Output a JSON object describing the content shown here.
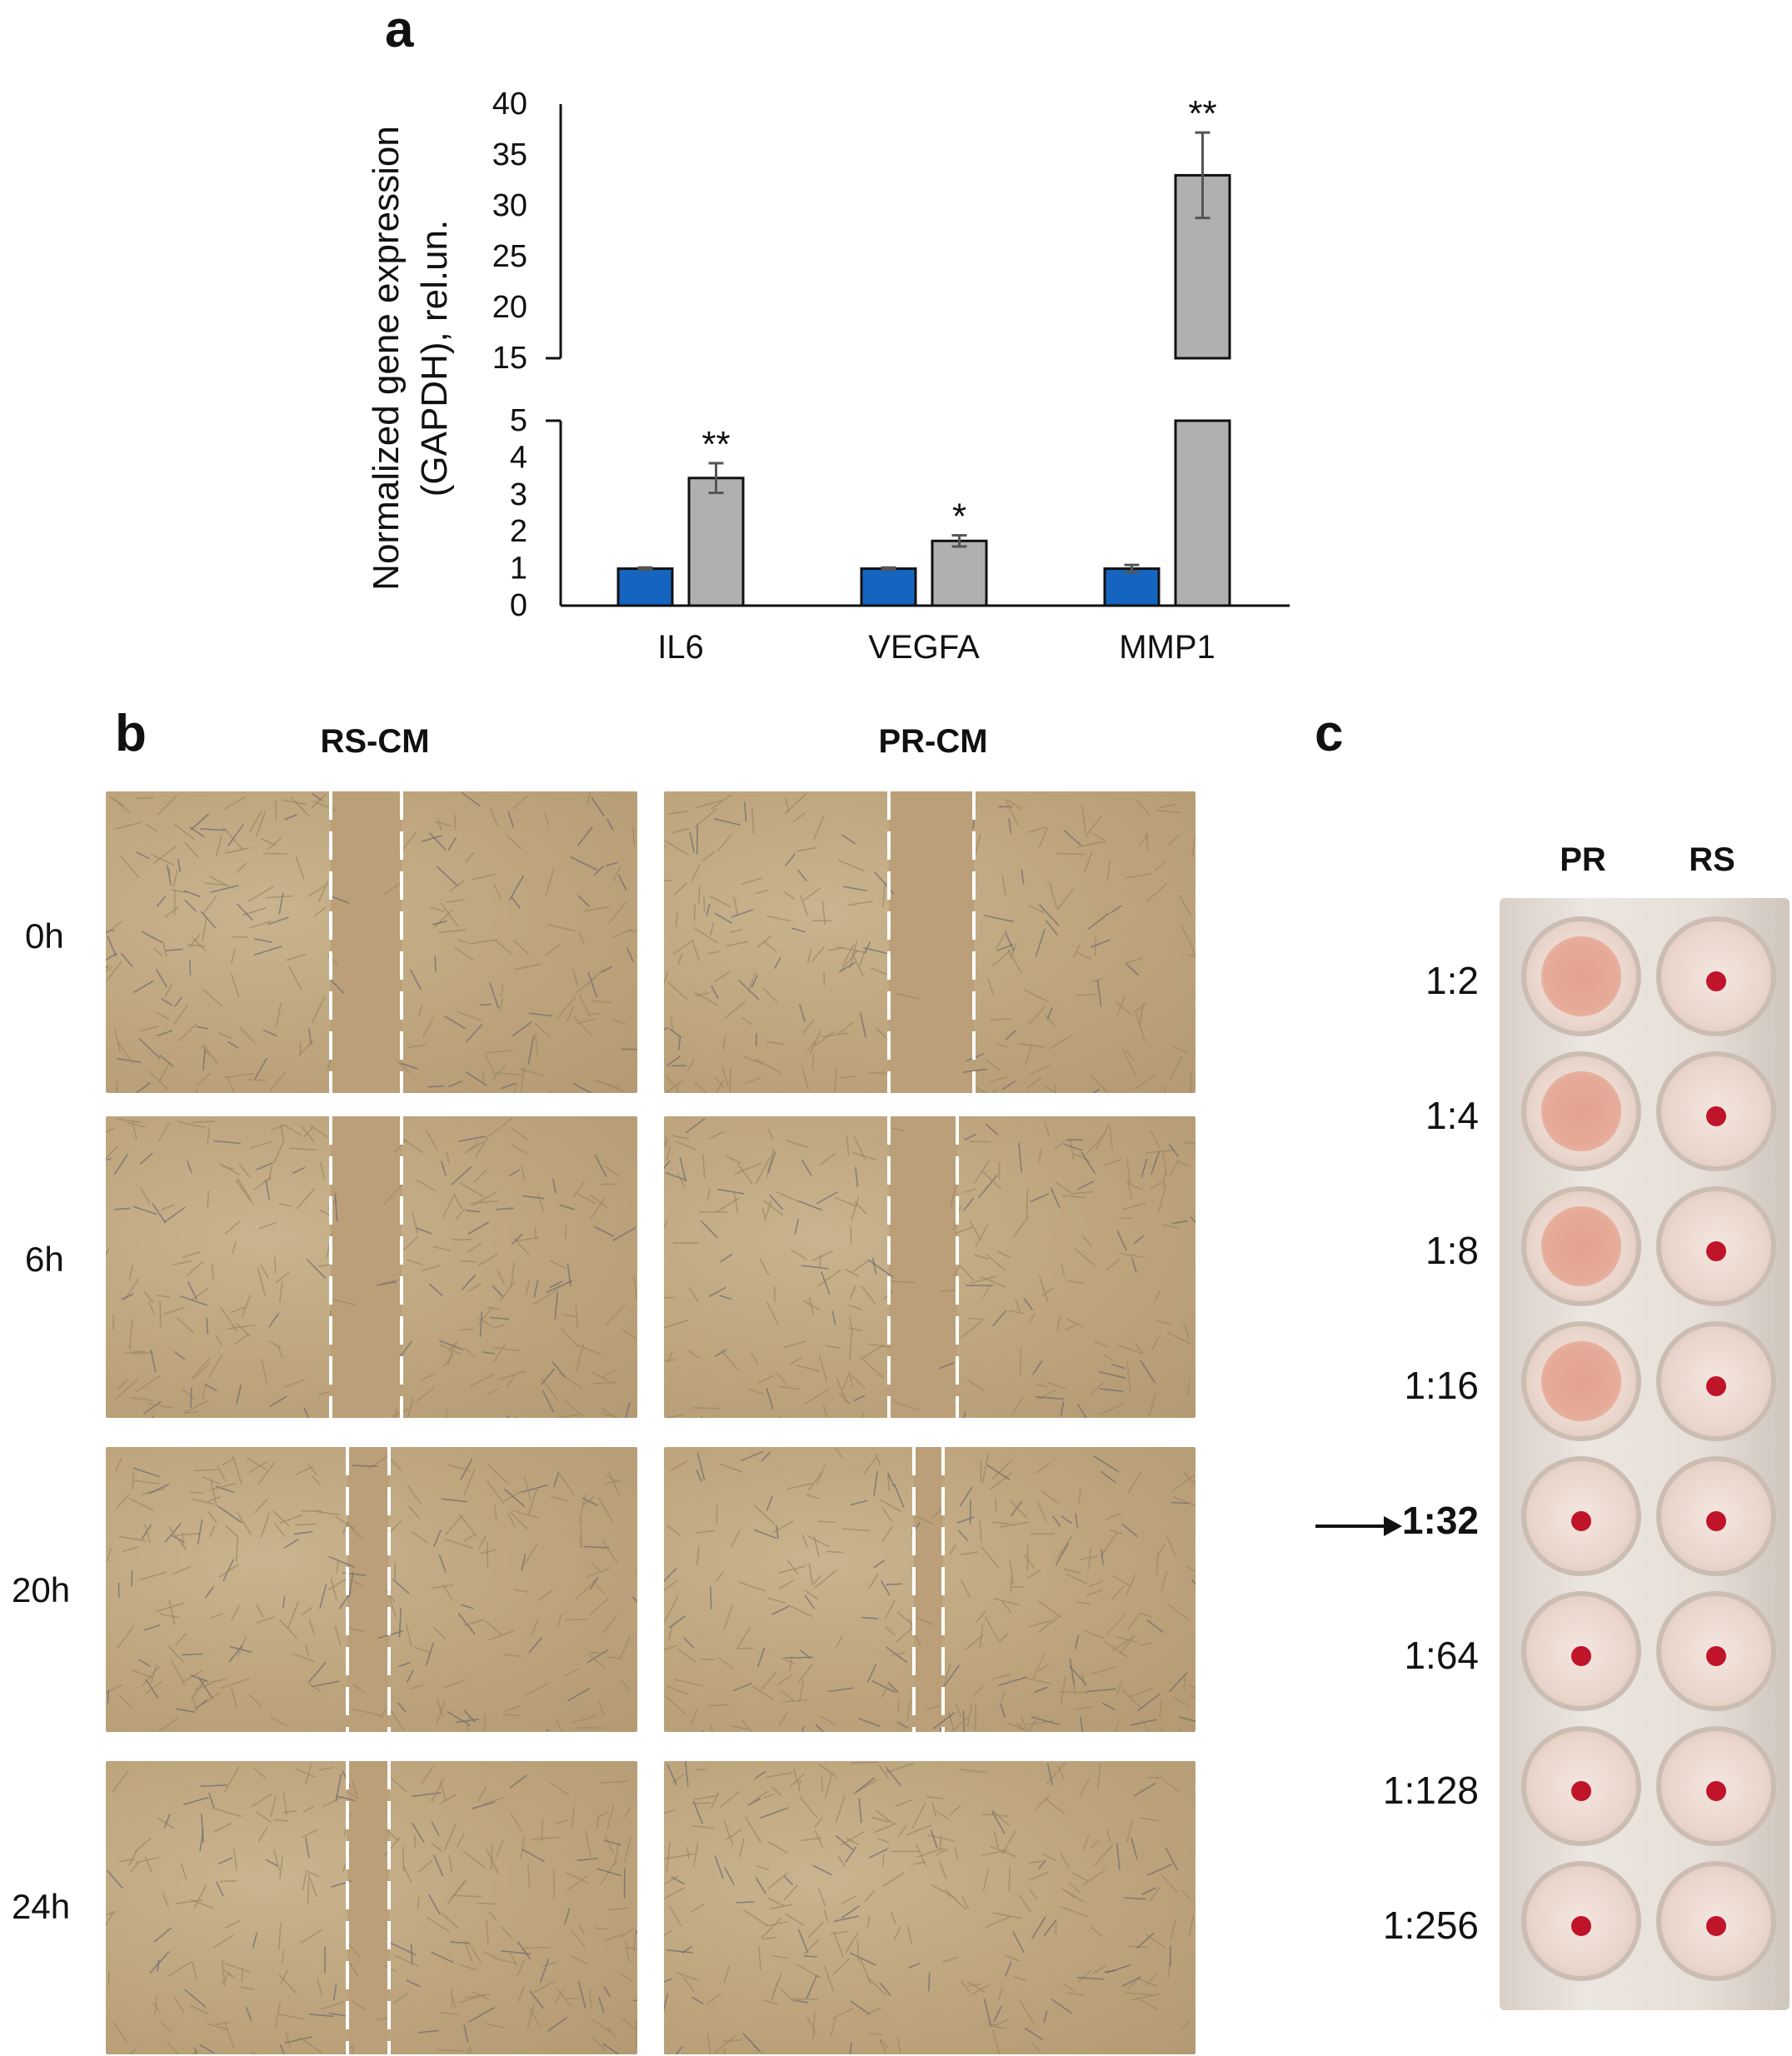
{
  "panels": {
    "a": {
      "letter": "a"
    },
    "b": {
      "letter": "b",
      "columns": [
        "RS-CM",
        "PR-CM"
      ],
      "time_points": [
        "0h",
        "6h",
        "20h",
        "24h"
      ]
    },
    "c": {
      "letter": "c",
      "columns": [
        "PR",
        "RS"
      ],
      "dilutions": [
        "1:2",
        "1:4",
        "1:8",
        "1:16",
        "1:32",
        "1:64",
        "1:128",
        "1:256"
      ],
      "highlighted_dilution": "1:32"
    }
  },
  "colors": {
    "series1": "#1565c0",
    "series2": "#b0b0b0",
    "well_red": "#c0142a",
    "scratch_line": "#ffffff"
  },
  "chart_data": {
    "type": "bar",
    "categories": [
      "IL6",
      "VEGFA",
      "MMP1"
    ],
    "ylabel": "Normalized gene expression (GAPDH), rel.un.",
    "ylabel_lines": [
      "Normalized gene expression",
      "(GAPDH), rel.un."
    ],
    "axis_break": {
      "lower": [
        0,
        5
      ],
      "upper": [
        15,
        40
      ]
    },
    "yticks_lower": [
      "0",
      "1",
      "2",
      "3",
      "4",
      "5"
    ],
    "yticks_upper": [
      "15",
      "20",
      "25",
      "30",
      "35",
      "40"
    ],
    "series": [
      {
        "color": "#1565c0",
        "values": [
          1.0,
          1.0,
          1.0
        ],
        "errors": [
          0.03,
          0.03,
          0.1
        ]
      },
      {
        "color": "#b0b0b0",
        "values": [
          3.45,
          1.75,
          33.0
        ],
        "errors": [
          0.4,
          0.15,
          4.2
        ],
        "significance": [
          "**",
          "*",
          "**"
        ]
      }
    ]
  }
}
